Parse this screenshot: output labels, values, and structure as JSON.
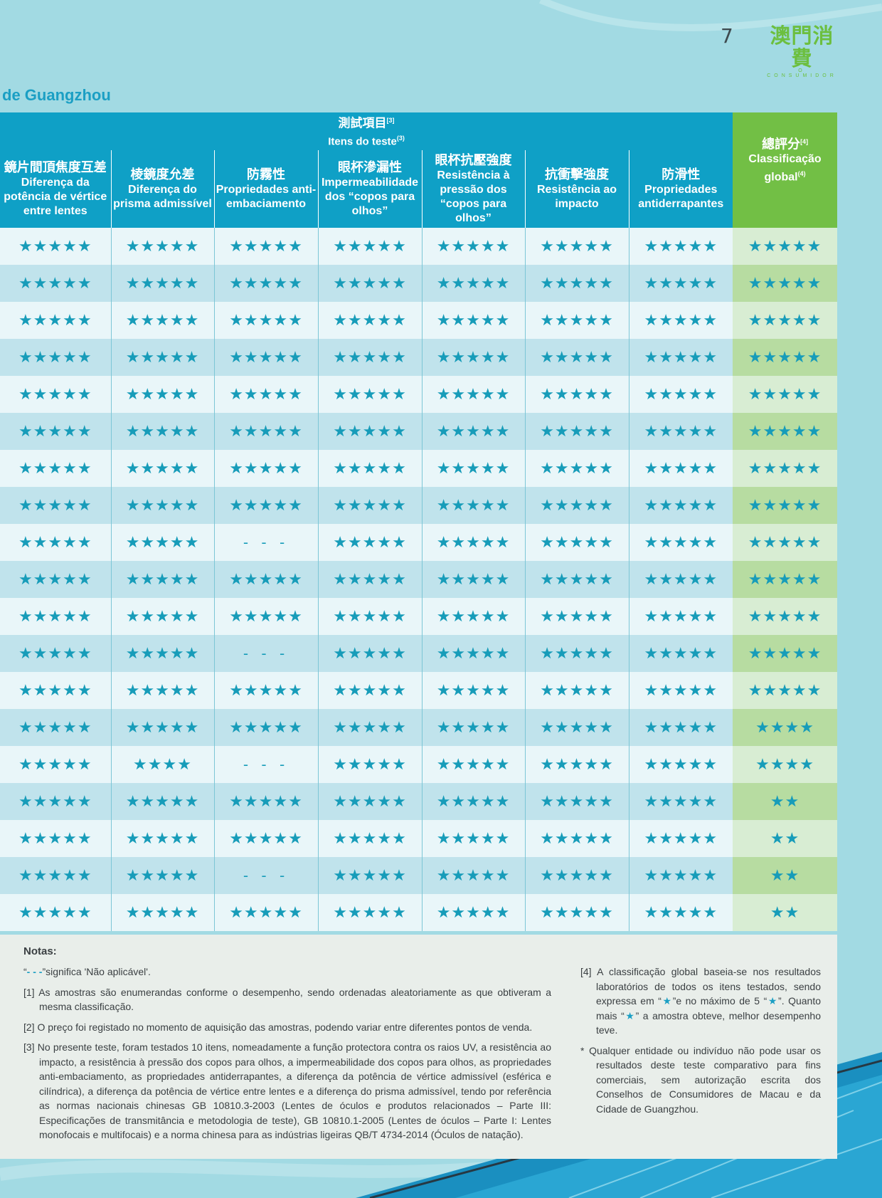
{
  "header": {
    "page_number": "7",
    "brand_cn": "澳門消費",
    "brand_sub": "O CONSUMIDOR",
    "title": "de Guangzhou"
  },
  "table": {
    "group_header_cn": "測試項目",
    "group_header_en": "Itens do teste",
    "group_header_cn_ref": "[3]",
    "group_header_en_ref": "(3)",
    "columns": [
      {
        "cn": "鏡片間頂焦度互差",
        "pt": "Diferença da potência de vértice entre lentes"
      },
      {
        "cn": "棱鏡度允差",
        "pt": "Diferença do prisma admissível"
      },
      {
        "cn": "防霧性",
        "pt": "Propriedades anti-embaciamento"
      },
      {
        "cn": "眼杯滲漏性",
        "pt": "Impermeabilidade dos “copos para olhos”"
      },
      {
        "cn": "眼杯抗壓強度",
        "pt": "Resistência à pressão dos “copos para olhos”"
      },
      {
        "cn": "抗衝擊強度",
        "pt": "Resistência ao impacto"
      },
      {
        "cn": "防滑性",
        "pt": "Propriedades antiderrapantes"
      }
    ],
    "total_header": {
      "cn": "總評分",
      "cn_ref": "[4]",
      "pt": "Classificação global",
      "pt_ref": "(4)"
    },
    "rows": [
      [
        "★★★★★",
        "★★★★★",
        "★★★★★",
        "★★★★★",
        "★★★★★",
        "★★★★★",
        "★★★★★",
        "★★★★★"
      ],
      [
        "★★★★★",
        "★★★★★",
        "★★★★★",
        "★★★★★",
        "★★★★★",
        "★★★★★",
        "★★★★★",
        "★★★★★"
      ],
      [
        "★★★★★",
        "★★★★★",
        "★★★★★",
        "★★★★★",
        "★★★★★",
        "★★★★★",
        "★★★★★",
        "★★★★★"
      ],
      [
        "★★★★★",
        "★★★★★",
        "★★★★★",
        "★★★★★",
        "★★★★★",
        "★★★★★",
        "★★★★★",
        "★★★★★"
      ],
      [
        "★★★★★",
        "★★★★★",
        "★★★★★",
        "★★★★★",
        "★★★★★",
        "★★★★★",
        "★★★★★",
        "★★★★★"
      ],
      [
        "★★★★★",
        "★★★★★",
        "★★★★★",
        "★★★★★",
        "★★★★★",
        "★★★★★",
        "★★★★★",
        "★★★★★"
      ],
      [
        "★★★★★",
        "★★★★★",
        "★★★★★",
        "★★★★★",
        "★★★★★",
        "★★★★★",
        "★★★★★",
        "★★★★★"
      ],
      [
        "★★★★★",
        "★★★★★",
        "★★★★★",
        "★★★★★",
        "★★★★★",
        "★★★★★",
        "★★★★★",
        "★★★★★"
      ],
      [
        "★★★★★",
        "★★★★★",
        "- - -",
        "★★★★★",
        "★★★★★",
        "★★★★★",
        "★★★★★",
        "★★★★★"
      ],
      [
        "★★★★★",
        "★★★★★",
        "★★★★★",
        "★★★★★",
        "★★★★★",
        "★★★★★",
        "★★★★★",
        "★★★★★"
      ],
      [
        "★★★★★",
        "★★★★★",
        "★★★★★",
        "★★★★★",
        "★★★★★",
        "★★★★★",
        "★★★★★",
        "★★★★★"
      ],
      [
        "★★★★★",
        "★★★★★",
        "- - -",
        "★★★★★",
        "★★★★★",
        "★★★★★",
        "★★★★★",
        "★★★★★"
      ],
      [
        "★★★★★",
        "★★★★★",
        "★★★★★",
        "★★★★★",
        "★★★★★",
        "★★★★★",
        "★★★★★",
        "★★★★★"
      ],
      [
        "★★★★★",
        "★★★★★",
        "★★★★★",
        "★★★★★",
        "★★★★★",
        "★★★★★",
        "★★★★★",
        "★★★★"
      ],
      [
        "★★★★★",
        "★★★★",
        "- - -",
        "★★★★★",
        "★★★★★",
        "★★★★★",
        "★★★★★",
        "★★★★"
      ],
      [
        "★★★★★",
        "★★★★★",
        "★★★★★",
        "★★★★★",
        "★★★★★",
        "★★★★★",
        "★★★★★",
        "★★"
      ],
      [
        "★★★★★",
        "★★★★★",
        "★★★★★",
        "★★★★★",
        "★★★★★",
        "★★★★★",
        "★★★★★",
        "★★"
      ],
      [
        "★★★★★",
        "★★★★★",
        "- - -",
        "★★★★★",
        "★★★★★",
        "★★★★★",
        "★★★★★",
        "★★"
      ],
      [
        "★★★★★",
        "★★★★★",
        "★★★★★",
        "★★★★★",
        "★★★★★",
        "★★★★★",
        "★★★★★",
        "★★"
      ]
    ]
  },
  "notes": {
    "title": "Notas:",
    "na_note_prefix": "“",
    "na_note_dash": "- - -",
    "na_note_text": "”significa 'Não aplicável'.",
    "n1": "[1]  As amostras são enumerandas conforme o desempenho, sendo ordenadas aleatoriamente as que obtiveram a mesma classificação.",
    "n2": "[2]  O preço foi registado no momento de aquisição das amostras, podendo variar entre diferentes pontos de venda.",
    "n3": "[3] No presente teste, foram testados 10 itens, nomeadamente a função protectora contra os raios UV, a resistência ao impacto, a resistência à pressão dos copos para olhos, a impermeabilidade dos copos para olhos, as propriedades anti-embaciamento, as propriedades antiderrapantes, a diferença da potência de vértice admissível (esférica e cilíndrica), a diferença da potência de vértice entre lentes e a diferença do prisma admissível, tendo por referência as normas nacionais chinesas GB 10810.3-2003 (Lentes de óculos e produtos relacionados – Parte III: Especificações de transmitância e metodologia de teste), GB 10810.1-2005 (Lentes de óculos – Parte I: Lentes monofocais e multifocais) e a norma chinesa para as indústrias ligeiras QB/T 4734-2014 (Óculos de natação).",
    "n4_a": "[4]  A classificação global baseia-se nos resultados laboratórios de todos os itens testados, sendo expressa em “",
    "n4_star": "★",
    "n4_b": "”e no máximo de 5 “",
    "n4_c": "”. Quanto mais “",
    "n4_d": "” a amostra obteve, melhor desempenho teve.",
    "n5": "* Qualquer entidade ou indivíduo não pode usar os resultados deste teste comparativo para fins comerciais, sem autorização escrita dos Conselhos de Consumidores de Macau e da Cidade de Guangzhou."
  },
  "colors": {
    "header_blue": "#0fa0c6",
    "header_green": "#72bf45",
    "star": "#179cb9",
    "background": "#a2dae3"
  }
}
